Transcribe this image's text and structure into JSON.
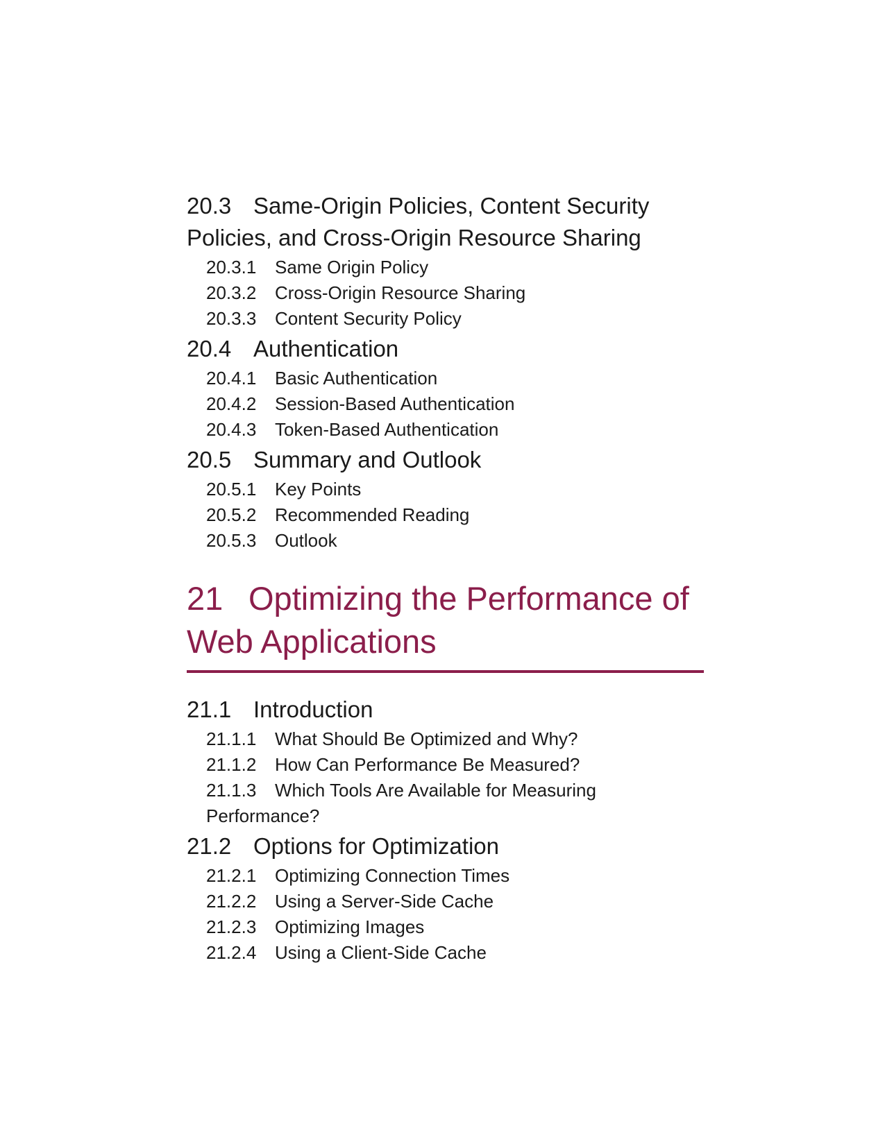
{
  "ch20": {
    "sections": [
      {
        "num": "20.3",
        "title": "Same-Origin Policies, Content Security Policies, and Cross-Origin Resource Sharing",
        "subs": [
          {
            "num": "20.3.1",
            "title": "Same Origin Policy"
          },
          {
            "num": "20.3.2",
            "title": "Cross-Origin Resource Sharing"
          },
          {
            "num": "20.3.3",
            "title": "Content Security Policy"
          }
        ]
      },
      {
        "num": "20.4",
        "title": "Authentication",
        "subs": [
          {
            "num": "20.4.1",
            "title": "Basic Authentication"
          },
          {
            "num": "20.4.2",
            "title": "Session-Based Authentication"
          },
          {
            "num": "20.4.3",
            "title": "Token-Based Authentication"
          }
        ]
      },
      {
        "num": "20.5",
        "title": "Summary and Outlook",
        "subs": [
          {
            "num": "20.5.1",
            "title": "Key Points"
          },
          {
            "num": "20.5.2",
            "title": "Recommended Reading"
          },
          {
            "num": "20.5.3",
            "title": "Outlook"
          }
        ]
      }
    ]
  },
  "ch21": {
    "num": "21",
    "title": "Optimizing the Performance of Web Applications",
    "accent_color": "#8b1e4b",
    "sections": [
      {
        "num": "21.1",
        "title": "Introduction",
        "subs": [
          {
            "num": "21.1.1",
            "title": "What Should Be Optimized and Why?"
          },
          {
            "num": "21.1.2",
            "title": "How Can Performance Be Measured?"
          },
          {
            "num": "21.1.3",
            "title": "Which Tools Are Available for Measuring Performance?"
          }
        ]
      },
      {
        "num": "21.2",
        "title": "Options for Optimization",
        "subs": [
          {
            "num": "21.2.1",
            "title": "Optimizing Connection Times"
          },
          {
            "num": "21.2.2",
            "title": "Using a Server-Side Cache"
          },
          {
            "num": "21.2.3",
            "title": "Optimizing Images"
          },
          {
            "num": "21.2.4",
            "title": "Using a Client-Side Cache"
          }
        ]
      }
    ]
  }
}
